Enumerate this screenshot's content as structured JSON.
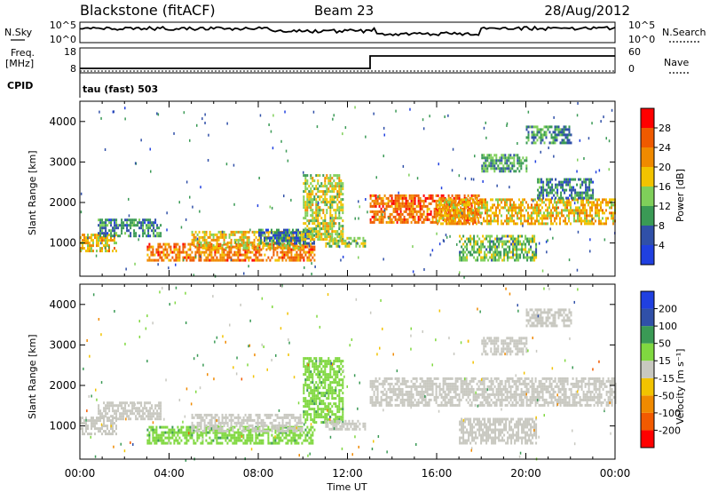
{
  "header": {
    "radar": "Blackstone (fitACF)",
    "beam": "Beam 23",
    "date": "28/Aug/2012"
  },
  "top_panel": {
    "left_label": "N.Sky",
    "left_ticks": [
      "10^5",
      "10^0"
    ],
    "right_ticks": [
      "10^5",
      "10^0"
    ],
    "right_label": "N.Search"
  },
  "freq_panel": {
    "left_label_line1": "Freq.",
    "left_label_line2": "[MHz]",
    "left_ticks": [
      "18",
      "8"
    ],
    "right_ticks": [
      "60",
      "0"
    ],
    "right_label": "Nave",
    "cpid_label": "CPID",
    "cpid_text": "tau (fast) 503"
  },
  "colors": {
    "power": [
      "#2040e0",
      "#3050a8",
      "#3a9a55",
      "#7fcf5a",
      "#f2c300",
      "#f08a00",
      "#ef5a00",
      "#ff0000"
    ],
    "velocity": [
      "#ff0000",
      "#f25a00",
      "#f08a00",
      "#f2c300",
      "#c8c8c0",
      "#80d840",
      "#3a9a55",
      "#3050a8",
      "#2040e0"
    ]
  },
  "chart_data": [
    {
      "type": "heatmap",
      "name": "power",
      "title": "",
      "ylabel": "Slant Range [km]",
      "xlabel": "",
      "xlim": [
        0,
        24
      ],
      "ylim": [
        180,
        4500
      ],
      "xticks": [
        "00:00",
        "04:00",
        "08:00",
        "12:00",
        "16:00",
        "20:00",
        "00:00"
      ],
      "yticks": [
        1000,
        2000,
        3000,
        4000
      ],
      "colorbar": {
        "label": "Power [dB]",
        "ticks": [
          "4",
          "8",
          "12",
          "16",
          "20",
          "24",
          "28"
        ],
        "range": [
          0,
          30
        ]
      },
      "regions": [
        {
          "t": [
            0.0,
            1.6
          ],
          "r": [
            820,
            1230
          ],
          "value": 18
        },
        {
          "t": [
            0.8,
            3.6
          ],
          "r": [
            1150,
            1600
          ],
          "value": 8
        },
        {
          "t": [
            3.0,
            10.5
          ],
          "r": [
            600,
            1000
          ],
          "value": 22
        },
        {
          "t": [
            5.0,
            10.0
          ],
          "r": [
            900,
            1300
          ],
          "value": 17
        },
        {
          "t": [
            8.0,
            10.5
          ],
          "r": [
            1000,
            1350
          ],
          "value": 7
        },
        {
          "t": [
            10.0,
            11.8
          ],
          "r": [
            1100,
            2700
          ],
          "value": 15
        },
        {
          "t": [
            11.0,
            12.8
          ],
          "r": [
            900,
            1150
          ],
          "value": 14
        },
        {
          "t": [
            13.0,
            18.0
          ],
          "r": [
            1500,
            2200
          ],
          "value": 23
        },
        {
          "t": [
            16.0,
            24.0
          ],
          "r": [
            1500,
            2100
          ],
          "value": 18
        },
        {
          "t": [
            17.0,
            20.5
          ],
          "r": [
            600,
            1200
          ],
          "value": 12
        },
        {
          "t": [
            18.0,
            20.0
          ],
          "r": [
            2800,
            3200
          ],
          "value": 10
        },
        {
          "t": [
            20.0,
            22.0
          ],
          "r": [
            3500,
            3900
          ],
          "value": 9
        },
        {
          "t": [
            20.5,
            23.0
          ],
          "r": [
            2100,
            2600
          ],
          "value": 8
        }
      ]
    },
    {
      "type": "heatmap",
      "name": "velocity",
      "title": "",
      "ylabel": "Slant Range [km]",
      "xlabel": "Time UT",
      "xlim": [
        0,
        24
      ],
      "ylim": [
        180,
        4500
      ],
      "xticks": [
        "00:00",
        "04:00",
        "08:00",
        "12:00",
        "16:00",
        "20:00",
        "00:00"
      ],
      "yticks": [
        1000,
        2000,
        3000,
        4000
      ],
      "colorbar": {
        "label": "Velocity [m s⁻¹]",
        "ticks": [
          "200",
          "100",
          "50",
          "15",
          "-15",
          "-50",
          "-100",
          "-200"
        ],
        "range": [
          -250,
          250
        ]
      },
      "regions": [
        {
          "t": [
            0.0,
            1.6
          ],
          "r": [
            820,
            1230
          ],
          "value": 0
        },
        {
          "t": [
            0.8,
            3.6
          ],
          "r": [
            1150,
            1600
          ],
          "value": 0
        },
        {
          "t": [
            3.0,
            10.5
          ],
          "r": [
            600,
            1000
          ],
          "value": 70
        },
        {
          "t": [
            5.0,
            10.0
          ],
          "r": [
            900,
            1300
          ],
          "value": 0
        },
        {
          "t": [
            10.0,
            11.8
          ],
          "r": [
            1100,
            2700
          ],
          "value": 70
        },
        {
          "t": [
            11.0,
            12.8
          ],
          "r": [
            900,
            1150
          ],
          "value": 0
        },
        {
          "t": [
            13.0,
            24.0
          ],
          "r": [
            1500,
            2200
          ],
          "value": 0
        },
        {
          "t": [
            17.0,
            20.5
          ],
          "r": [
            600,
            1200
          ],
          "value": 0
        },
        {
          "t": [
            18.0,
            20.0
          ],
          "r": [
            2800,
            3200
          ],
          "value": 0
        },
        {
          "t": [
            20.0,
            22.0
          ],
          "r": [
            3500,
            3900
          ],
          "value": 0
        }
      ]
    }
  ]
}
